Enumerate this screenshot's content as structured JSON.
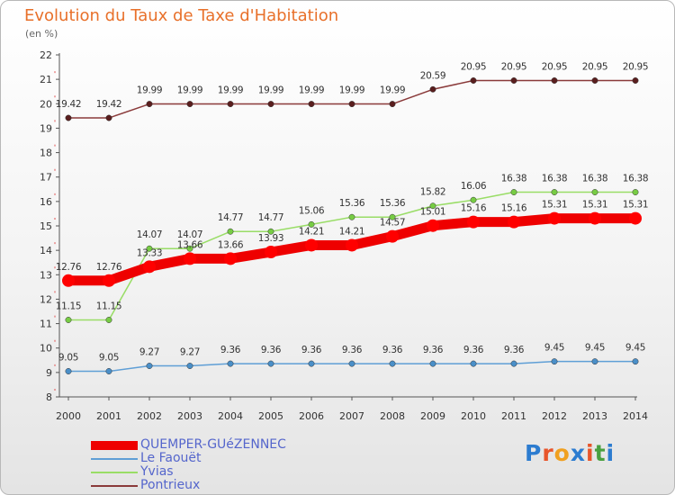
{
  "title": "Evolution du Taux de Taxe d'Habitation",
  "subtitle": "(en %)",
  "logo": {
    "text": "Proxiti",
    "letters": [
      "P",
      "r",
      "o",
      "x",
      "i",
      "t",
      "i"
    ],
    "colors": [
      "#2c7cd0",
      "#e8552a",
      "#f0a020",
      "#2c7cd0",
      "#e8552a",
      "#4aa040",
      "#2c7cd0"
    ]
  },
  "chart_data": {
    "type": "line",
    "x": [
      2000,
      2001,
      2002,
      2003,
      2004,
      2005,
      2006,
      2007,
      2008,
      2009,
      2010,
      2011,
      2012,
      2013,
      2014
    ],
    "ylim": [
      8,
      22
    ],
    "yticks": [
      8,
      9,
      10,
      11,
      12,
      13,
      14,
      15,
      16,
      17,
      18,
      19,
      20,
      21,
      22
    ],
    "grid": false,
    "legend_position": "bottom-left",
    "series": [
      {
        "name": "QUEMPER-GUéZENNEC",
        "color": "#ff0000",
        "values": [
          12.76,
          12.76,
          13.33,
          13.66,
          13.66,
          13.93,
          14.21,
          14.21,
          14.57,
          15.01,
          15.16,
          15.16,
          15.31,
          15.31,
          15.31
        ]
      },
      {
        "name": "Le Faouët",
        "color": "#4a8fc8",
        "values": [
          9.05,
          9.05,
          9.27,
          9.27,
          9.36,
          9.36,
          9.36,
          9.36,
          9.36,
          9.36,
          9.36,
          9.36,
          9.45,
          9.45,
          9.45
        ]
      },
      {
        "name": "Yvias",
        "color": "#88dd55",
        "values": [
          11.15,
          11.15,
          14.07,
          14.07,
          14.77,
          14.77,
          15.06,
          15.36,
          15.36,
          15.82,
          16.06,
          16.38,
          16.38,
          16.38,
          16.38
        ]
      },
      {
        "name": "Pontrieux",
        "color": "#7a2e2e",
        "values": [
          19.42,
          19.42,
          19.99,
          19.99,
          19.99,
          19.99,
          19.99,
          19.99,
          19.99,
          20.59,
          20.95,
          20.95,
          20.95,
          20.95,
          20.95
        ]
      }
    ]
  }
}
